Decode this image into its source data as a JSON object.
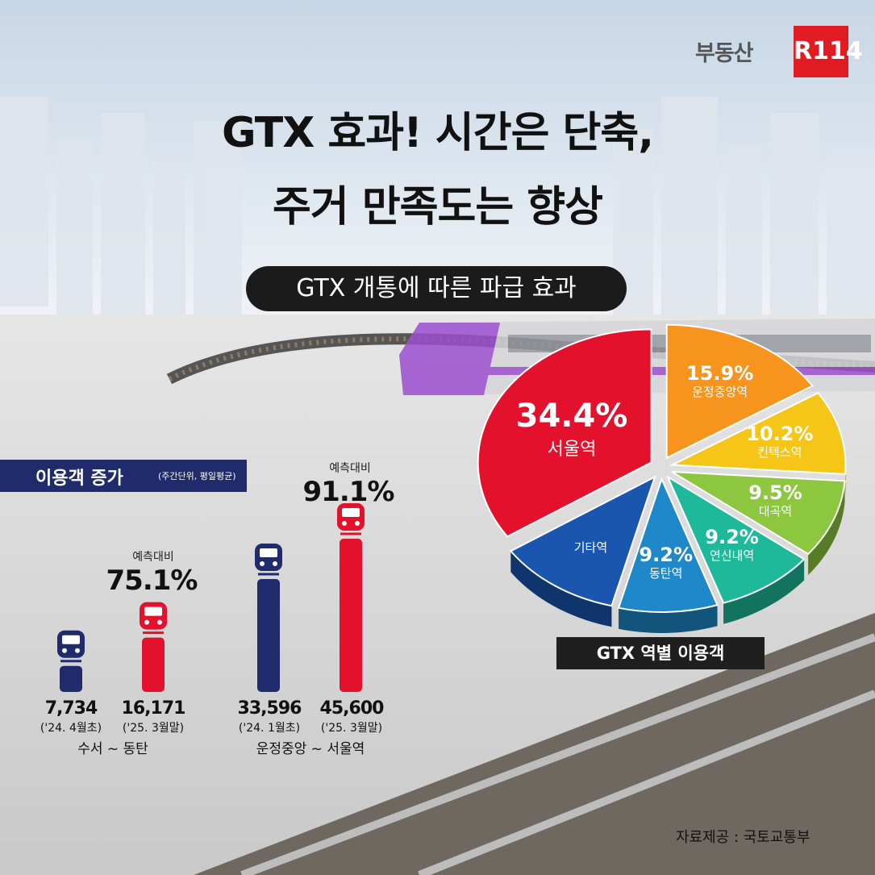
{
  "brand": {
    "name_kr": "부동산",
    "badge": "R114"
  },
  "title": {
    "line1": "GTX 효과! 시간은 단축,",
    "line2": "주거 만족도는 향상"
  },
  "section_pill": "GTX 개통에 따른 파급 효과",
  "ridership_header": {
    "label": "이용객 증가",
    "unit": "(주간단위, 평일평균)"
  },
  "ridership": [
    {
      "route": "수서 ~ 동탄",
      "change_label": "예측대비",
      "change_pct": "75.1%",
      "before": {
        "value": "7,734",
        "date": "('24. 4월초)"
      },
      "after": {
        "value": "16,171",
        "date": "('25. 3월말)"
      }
    },
    {
      "route": "운정중앙 ~ 서울역",
      "change_label": "예측대비",
      "change_pct": "91.1%",
      "before": {
        "value": "33,596",
        "date": "('24. 1월초)"
      },
      "after": {
        "value": "45,600",
        "date": "('25. 3월말)"
      }
    }
  ],
  "colors": {
    "navy": "#1f2b6b",
    "red": "#e4112c",
    "seoul": "#e4112c",
    "unjeong": "#f7941d",
    "kintex": "#f5c518",
    "daegok": "#8dc63f",
    "yeonsinnae": "#1db99a",
    "dongtan": "#1e88c8",
    "others": "#1a56b0"
  },
  "chart_data": [
    {
      "type": "bar",
      "categories": [
        "('24. 4월초)",
        "('25. 3월말)",
        "('24. 1월초)",
        "('25. 3월말)"
      ],
      "groups": [
        "수서 ~ 동탄",
        "수서 ~ 동탄",
        "운정중앙 ~ 서울역",
        "운정중앙 ~ 서울역"
      ],
      "values": [
        7734,
        16171,
        33596,
        45600
      ],
      "annotations": [
        "",
        "예측대비 75.1%",
        "",
        "예측대비 91.1%"
      ],
      "title": "이용객 증가",
      "subtitle": "(주간단위, 평일평균)"
    },
    {
      "type": "pie",
      "title": "GTX 역별 이용객",
      "labels": [
        "서울역",
        "운정중앙역",
        "킨텍스역",
        "대곡역",
        "연신내역",
        "동탄역",
        "기타역"
      ],
      "values": [
        34.4,
        15.9,
        10.2,
        9.5,
        9.2,
        9.2,
        11.6
      ],
      "display": [
        "34.4%",
        "15.9%",
        "10.2%",
        "9.5%",
        "9.2%",
        "9.2%",
        ""
      ]
    }
  ],
  "source": "자료제공 : 국토교통부"
}
